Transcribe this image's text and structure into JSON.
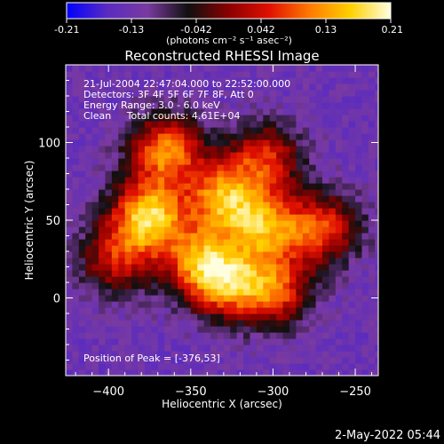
{
  "colorbar": {
    "ticks": [
      "-0.21",
      "-0.13",
      "-0.042",
      "0.042",
      "0.13",
      "0.21"
    ],
    "units_text": "(photons cm⁻² s⁻¹ asec⁻²)",
    "range": [
      -0.21,
      0.21
    ],
    "colors": [
      "#0000ff",
      "#5a2bc0",
      "#7a3aa0",
      "#101010",
      "#8a0000",
      "#e01000",
      "#ff7a00",
      "#ffd000",
      "#ffffe0"
    ]
  },
  "chart_data": {
    "type": "heatmap",
    "title": "Reconstructed RHESSI Image",
    "xlabel": "Heliocentric X (arcsec)",
    "ylabel": "Heliocentric Y (arcsec)",
    "xlim": [
      -426,
      -236
    ],
    "ylim": [
      -50,
      150
    ],
    "xticks": [
      {
        "value": -400,
        "label": "−400"
      },
      {
        "value": -350,
        "label": "−350"
      },
      {
        "value": -300,
        "label": "−300"
      },
      {
        "value": -250,
        "label": "−250"
      }
    ],
    "yticks": [
      {
        "value": 0,
        "label": "0"
      },
      {
        "value": 50,
        "label": "50"
      },
      {
        "value": 100,
        "label": "100"
      }
    ],
    "annotations": [
      "21-Jul-2004 22:47:04.000 to 22:52:00.000",
      "Detectors: 3F 4F 5F 6F 7F 8F, Att 0",
      "Energy Range: 3.0 - 6.0 keV",
      "Clean     Total counts: 4.61E+04"
    ],
    "peak_label": "Position of Peak = [-376,53]",
    "peak": [
      -376,
      53
    ],
    "emission_sources": [
      {
        "x": -376,
        "y": 53,
        "value": 0.21
      },
      {
        "x": -365,
        "y": 95,
        "value": 0.15
      },
      {
        "x": -330,
        "y": 65,
        "value": 0.15
      },
      {
        "x": -305,
        "y": 45,
        "value": 0.13
      },
      {
        "x": -300,
        "y": 5,
        "value": 0.12
      },
      {
        "x": -330,
        "y": 10,
        "value": 0.12
      },
      {
        "x": -270,
        "y": 45,
        "value": 0.1
      },
      {
        "x": -345,
        "y": 25,
        "value": 0.1
      },
      {
        "x": -395,
        "y": 25,
        "value": 0.06
      },
      {
        "x": -305,
        "y": 90,
        "value": 0.08
      }
    ],
    "background_level": -0.13
  },
  "footer": {
    "date": "2-May-2022 05:44"
  }
}
